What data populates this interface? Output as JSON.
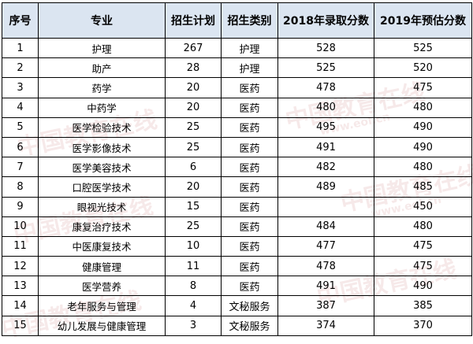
{
  "headers": [
    "序号",
    "专业",
    "招生计划",
    "招生类别",
    "2018年录取分数",
    "2019年预估分数"
  ],
  "rows": [
    [
      "1",
      "护理",
      "267",
      "护理",
      "528",
      "525"
    ],
    [
      "2",
      "助产",
      "28",
      "护理",
      "525",
      "520"
    ],
    [
      "3",
      "药学",
      "20",
      "医药",
      "478",
      "475"
    ],
    [
      "4",
      "中药学",
      "20",
      "医药",
      "480",
      "480"
    ],
    [
      "5",
      "医学检验技术",
      "25",
      "医药",
      "495",
      "490"
    ],
    [
      "6",
      "医学影像技术",
      "25",
      "医药",
      "491",
      "490"
    ],
    [
      "7",
      "医学美容技术",
      "6",
      "医药",
      "482",
      "480"
    ],
    [
      "8",
      "口腔医学技术",
      "20",
      "医药",
      "489",
      "485"
    ],
    [
      "9",
      "眼视光技术",
      "15",
      "医药",
      "",
      "450"
    ],
    [
      "10",
      "康复治疗技术",
      "25",
      "医药",
      "484",
      "480"
    ],
    [
      "11",
      "中医康复技术",
      "10",
      "医药",
      "477",
      "475"
    ],
    [
      "12",
      "健康管理",
      "11",
      "医药",
      "478",
      "475"
    ],
    [
      "13",
      "医学营养",
      "8",
      "医药",
      "491",
      "490"
    ],
    [
      "14",
      "老年服务与管理",
      "4",
      "文秘服务",
      "387",
      "385"
    ],
    [
      "15",
      "幼儿发展与健康管理",
      "3",
      "文秘服务",
      "374",
      "370"
    ]
  ],
  "watermark": {
    "cn": "中国教育在线",
    "url": "www.eol.cn"
  }
}
